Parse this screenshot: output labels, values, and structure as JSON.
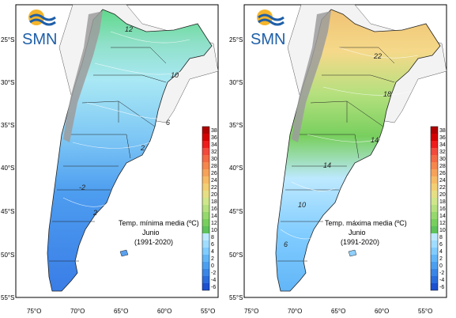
{
  "logo": {
    "text": "SMN"
  },
  "axes": {
    "lat_labels": [
      "25°S",
      "30°S",
      "35°S",
      "40°S",
      "45°S",
      "50°S",
      "55°S"
    ],
    "lon_labels": [
      "75°O",
      "70°O",
      "65°O",
      "60°O",
      "55°O"
    ]
  },
  "legend_values": [
    "38",
    "36",
    "34",
    "32",
    "30",
    "28",
    "26",
    "24",
    "22",
    "20",
    "18",
    "16",
    "14",
    "12",
    "10",
    "8",
    "6",
    "4",
    "2",
    "0",
    "-2",
    "-4",
    "-6"
  ],
  "legend_colors": [
    "#b00000",
    "#d40000",
    "#ef1c1c",
    "#f24a3c",
    "#f46a44",
    "#f5864d",
    "#f6a25a",
    "#f7bb66",
    "#f3cf73",
    "#e6de84",
    "#cfe68a",
    "#b5e07e",
    "#95d86c",
    "#78cf5e",
    "#5dc35a",
    "#bde9ff",
    "#9fdcff",
    "#80ccff",
    "#62b6f7",
    "#4c9ff0",
    "#3a86e6",
    "#2a6cdc",
    "#1c50d0"
  ],
  "panels": [
    {
      "id": "min",
      "caption_line1": "Temp. mínima media (ºC)",
      "caption_line2": "Junio",
      "caption_line3": "(1991-2020)",
      "iso_labels": [
        "12",
        "10",
        "6",
        "2",
        "-2",
        "2"
      ]
    },
    {
      "id": "max",
      "caption_line1": "Temp. máxima media (ºC)",
      "caption_line2": "Junio",
      "caption_line3": "(1991-2020)",
      "iso_labels": [
        "22",
        "18",
        "14",
        "14",
        "10",
        "6"
      ]
    }
  ]
}
